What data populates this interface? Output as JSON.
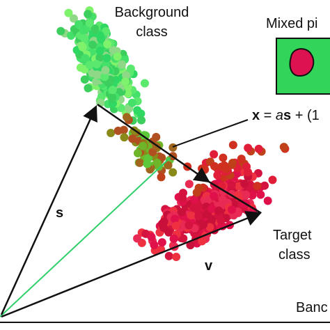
{
  "labels": {
    "background": [
      "Background",
      "class"
    ],
    "mixed": "Mixed pi",
    "s": "s",
    "v": "v",
    "target": [
      "Target",
      "class"
    ],
    "band": "Banc"
  },
  "equation": [
    "x",
    " = ",
    "a",
    "s",
    " + (1"
  ]
}
